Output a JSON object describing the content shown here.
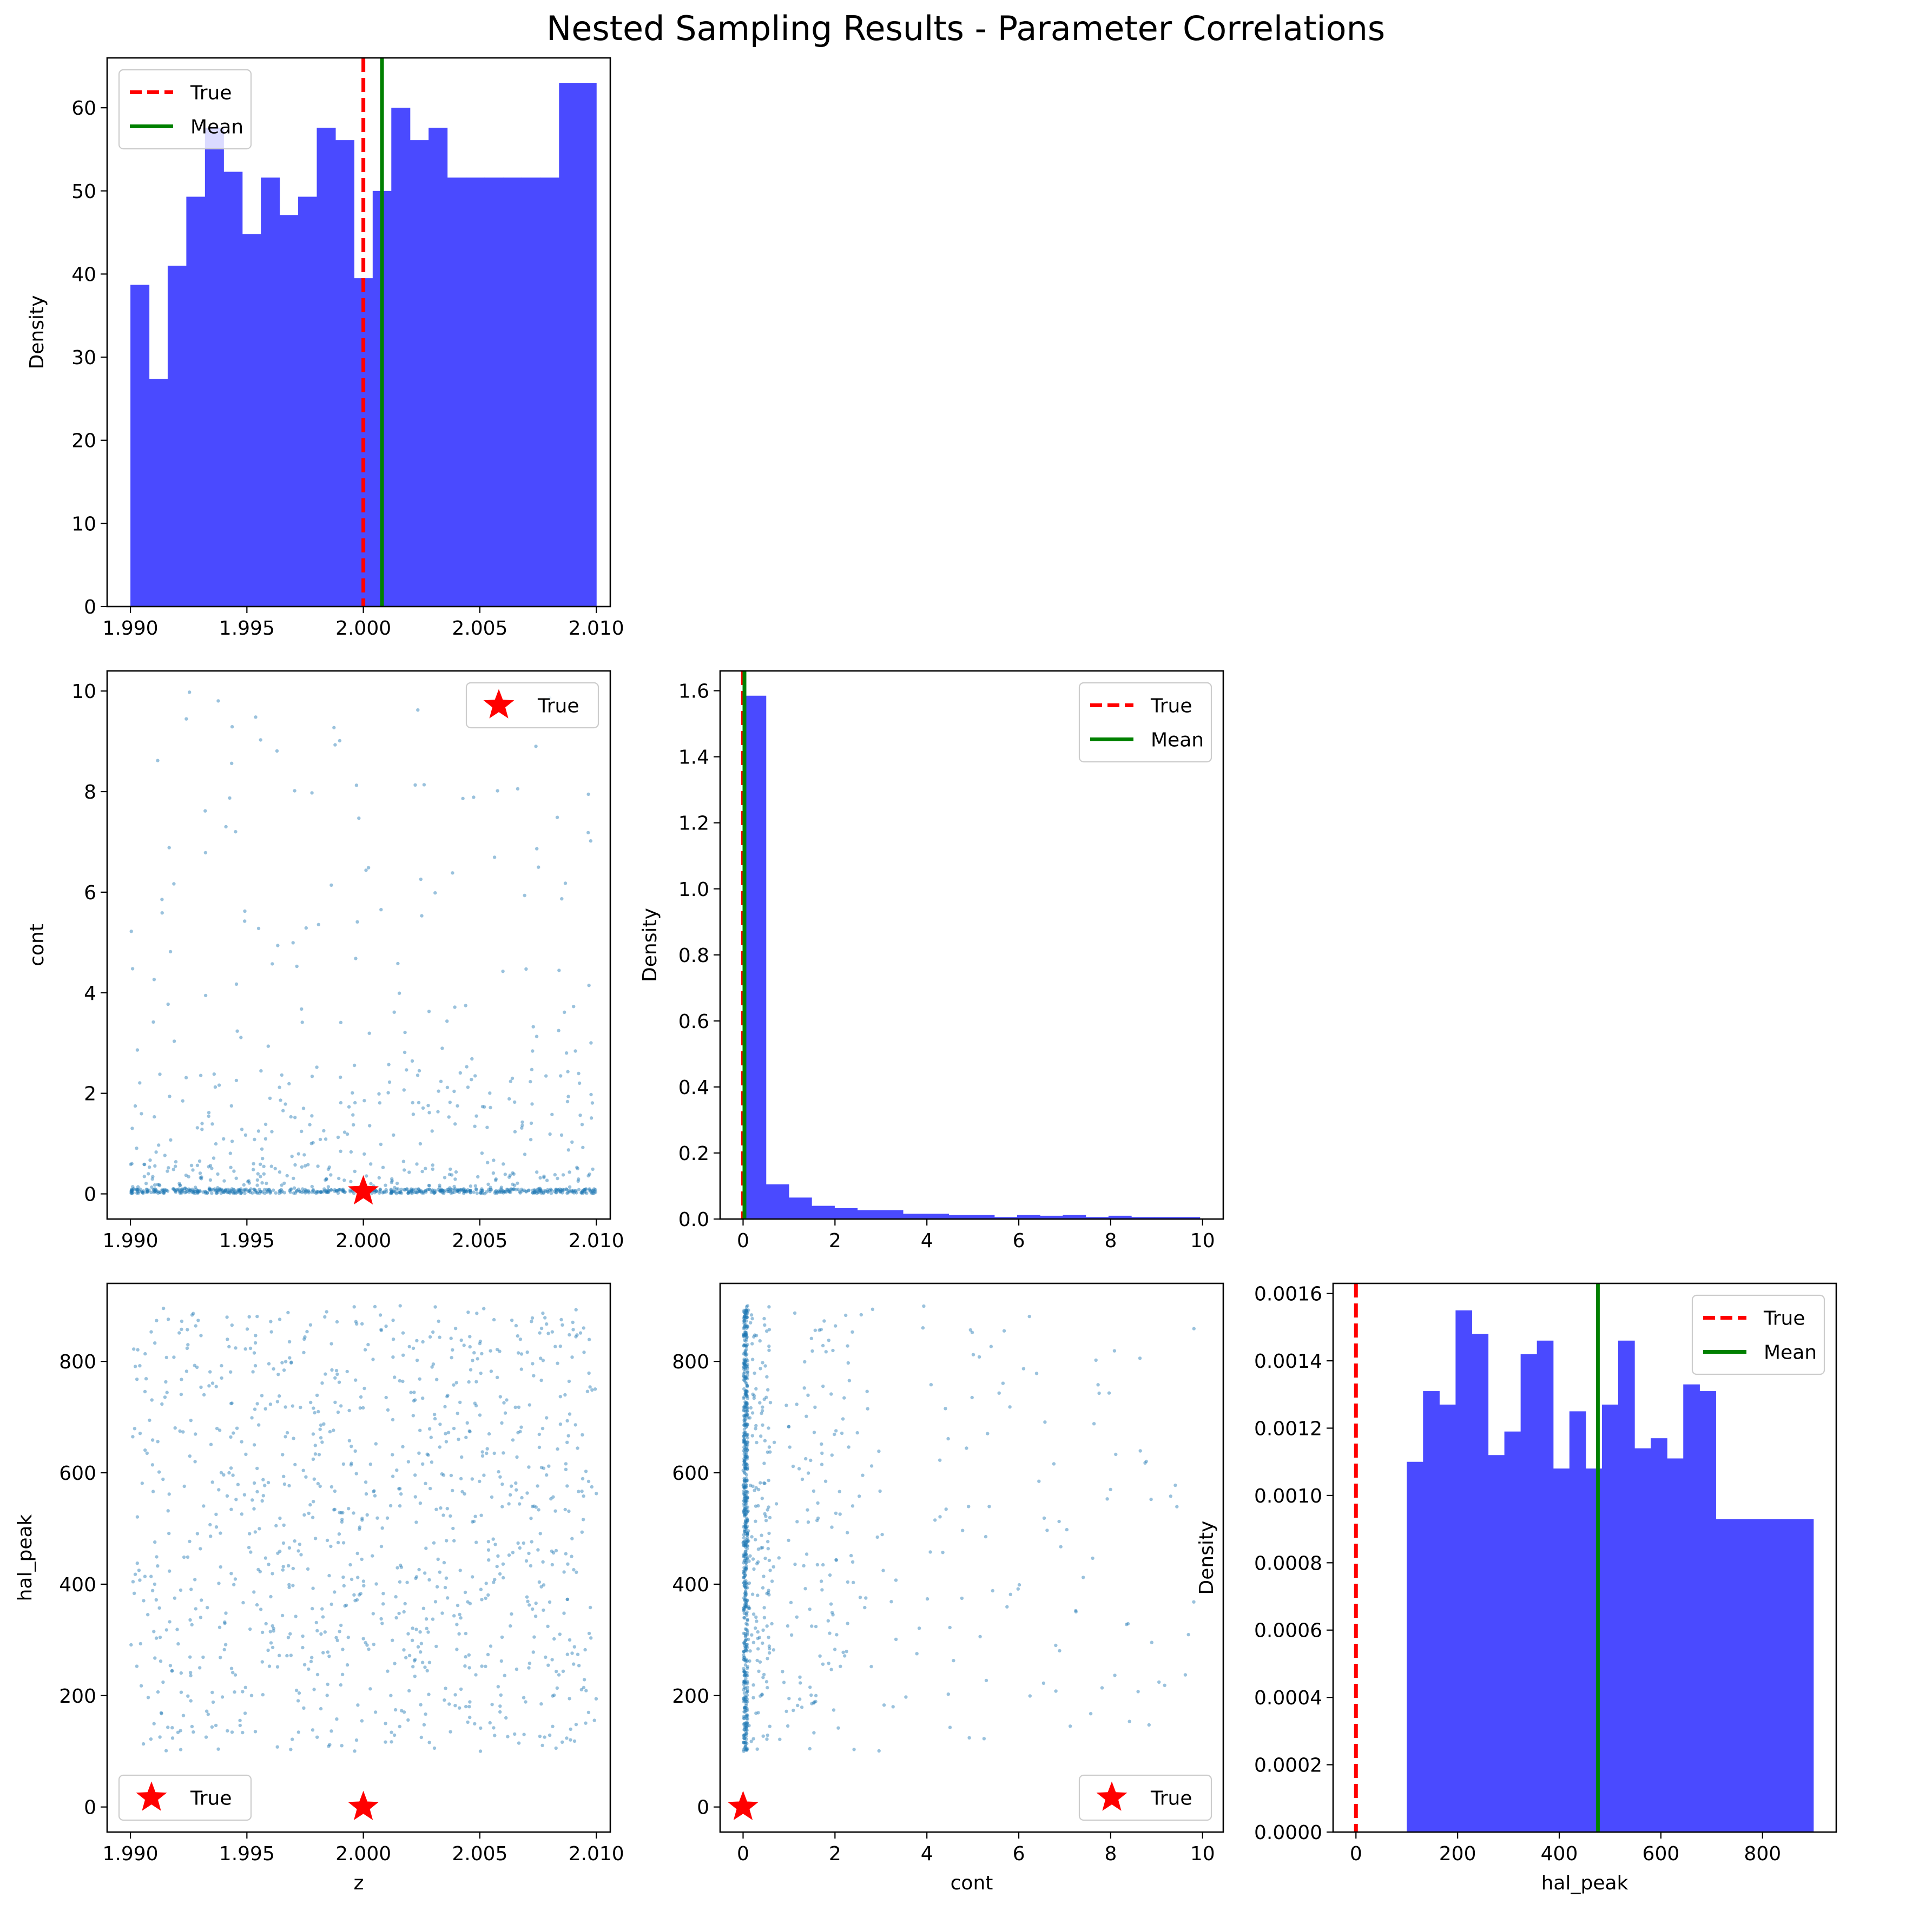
{
  "figure": {
    "title": "Nested Sampling Results - Parameter Correlations",
    "colors": {
      "hist_fill": "#4a4aff",
      "true_line": "#ff0000",
      "mean_line": "#008000",
      "scatter": "#1f77b4",
      "star": "#ff0000"
    }
  },
  "chart_data": [
    {
      "id": "hist_z",
      "type": "bar",
      "subtype": "histogram",
      "xlabel": "",
      "ylabel": "Density",
      "xlim": [
        1.989,
        2.0106
      ],
      "ylim": [
        0,
        66
      ],
      "xticks": [
        1.99,
        1.995,
        2.0,
        2.005,
        2.01
      ],
      "xtick_labels": [
        "1.990",
        "1.995",
        "2.000",
        "2.005",
        "2.010"
      ],
      "yticks": [
        0,
        10,
        20,
        30,
        40,
        50,
        60
      ],
      "ytick_labels": [
        "0",
        "10",
        "20",
        "30",
        "40",
        "50",
        "60"
      ],
      "bin_edges": [
        1.99,
        1.9908,
        1.9916,
        1.9924,
        1.9932,
        1.994,
        1.9948,
        1.9956,
        1.9964,
        1.9972,
        1.998,
        1.9988,
        1.9996,
        2.0004,
        2.0012,
        2.002,
        2.0028,
        2.0036,
        2.0044,
        2.0052,
        2.006,
        2.0068,
        2.0076,
        2.0084,
        2.0092,
        2.01
      ],
      "values": [
        38.7,
        27.4,
        41.0,
        49.3,
        57.6,
        52.3,
        44.8,
        51.6,
        47.1,
        49.3,
        57.6,
        56.1,
        39.5,
        50.0,
        60.0,
        56.1,
        57.6,
        51.6,
        51.6,
        51.6,
        51.6,
        51.6,
        51.6,
        63.0,
        63.0
      ],
      "true_value": 2.0,
      "mean_value": 2.0008,
      "legend": {
        "placement": "upper-left",
        "entries": [
          {
            "label": "True",
            "style": "dashed-red"
          },
          {
            "label": "Mean",
            "style": "solid-green"
          }
        ]
      }
    },
    {
      "id": "scatter_z_cont",
      "type": "scatter",
      "xlabel": "",
      "ylabel": "cont",
      "xlim": [
        1.989,
        2.0106
      ],
      "ylim": [
        -0.5,
        10.4
      ],
      "xticks": [
        1.99,
        1.995,
        2.0,
        2.005,
        2.01
      ],
      "xtick_labels": [
        "1.990",
        "1.995",
        "2.000",
        "2.005",
        "2.010"
      ],
      "yticks": [
        0,
        2,
        4,
        6,
        8,
        10
      ],
      "ytick_labels": [
        "0",
        "2",
        "4",
        "6",
        "8",
        "10"
      ],
      "n_points": 1000,
      "x_range": [
        1.99,
        2.01
      ],
      "y_distribution": "most points near 0 (dense band), sparse tail up to 10",
      "true_point": [
        2.0,
        0.05
      ],
      "legend": {
        "placement": "upper-right",
        "entries": [
          {
            "label": "True",
            "style": "red-star"
          }
        ]
      }
    },
    {
      "id": "hist_cont",
      "type": "bar",
      "subtype": "histogram",
      "xlabel": "",
      "ylabel": "Density",
      "xlim": [
        -0.5,
        10.45
      ],
      "ylim": [
        0,
        1.66
      ],
      "xticks": [
        0,
        2,
        4,
        6,
        8,
        10
      ],
      "xtick_labels": [
        "0",
        "2",
        "4",
        "6",
        "8",
        "10"
      ],
      "yticks": [
        0,
        0.2,
        0.4,
        0.6,
        0.8,
        1.0,
        1.2,
        1.4,
        1.6
      ],
      "ytick_labels": [
        "0.0",
        "0.2",
        "0.4",
        "0.6",
        "0.8",
        "1.0",
        "1.2",
        "1.4",
        "1.6"
      ],
      "bin_edges": [
        0.0,
        0.497,
        0.994,
        1.491,
        1.988,
        2.485,
        2.982,
        3.479,
        3.976,
        4.473,
        4.97,
        5.467,
        5.964,
        6.461,
        6.958,
        7.455,
        7.952,
        8.449,
        8.946,
        9.443,
        9.94
      ],
      "values": [
        1.585,
        0.105,
        0.065,
        0.04,
        0.033,
        0.027,
        0.027,
        0.016,
        0.016,
        0.012,
        0.012,
        0.006,
        0.012,
        0.01,
        0.012,
        0.006,
        0.01,
        0.006,
        0.006,
        0.006
      ],
      "true_value": 0.0,
      "mean_value": 0.03,
      "legend": {
        "placement": "upper-right",
        "entries": [
          {
            "label": "True",
            "style": "dashed-red"
          },
          {
            "label": "Mean",
            "style": "solid-green"
          }
        ]
      }
    },
    {
      "id": "scatter_z_halpeak",
      "type": "scatter",
      "xlabel": "z",
      "ylabel": "hal_peak",
      "xlim": [
        1.989,
        2.0106
      ],
      "ylim": [
        -45,
        940
      ],
      "xticks": [
        1.99,
        1.995,
        2.0,
        2.005,
        2.01
      ],
      "xtick_labels": [
        "1.990",
        "1.995",
        "2.000",
        "2.005",
        "2.010"
      ],
      "yticks": [
        0,
        200,
        400,
        600,
        800
      ],
      "ytick_labels": [
        "0",
        "200",
        "400",
        "600",
        "800"
      ],
      "n_points": 1000,
      "x_range": [
        1.99,
        2.01
      ],
      "y_range": [
        100,
        900
      ],
      "true_point": [
        2.0,
        0
      ],
      "legend": {
        "placement": "lower-left",
        "entries": [
          {
            "label": "True",
            "style": "red-star"
          }
        ]
      }
    },
    {
      "id": "scatter_cont_halpeak",
      "type": "scatter",
      "xlabel": "cont",
      "ylabel": "",
      "xlim": [
        -0.5,
        10.45
      ],
      "ylim": [
        -45,
        940
      ],
      "xticks": [
        0,
        2,
        4,
        6,
        8,
        10
      ],
      "xtick_labels": [
        "0",
        "2",
        "4",
        "6",
        "8",
        "10"
      ],
      "yticks": [
        0,
        200,
        400,
        600,
        800
      ],
      "ytick_labels": [
        "0",
        "200",
        "400",
        "600",
        "800"
      ],
      "n_points": 1000,
      "x_distribution": "most points near 0 (dense column), sparse tail up to 10",
      "y_range": [
        100,
        900
      ],
      "true_point": [
        0.0,
        0
      ],
      "legend": {
        "placement": "lower-right",
        "entries": [
          {
            "label": "True",
            "style": "red-star"
          }
        ]
      }
    },
    {
      "id": "hist_halpeak",
      "type": "bar",
      "subtype": "histogram",
      "xlabel": "hal_peak",
      "ylabel": "Density",
      "xlim": [
        -45,
        945
      ],
      "ylim": [
        0,
        0.00163
      ],
      "xticks": [
        0,
        200,
        400,
        600,
        800
      ],
      "xtick_labels": [
        "0",
        "200",
        "400",
        "600",
        "800"
      ],
      "yticks": [
        0,
        0.0002,
        0.0004,
        0.0006,
        0.0008,
        0.001,
        0.0012,
        0.0014,
        0.0016
      ],
      "ytick_labels": [
        "0.0000",
        "0.0002",
        "0.0004",
        "0.0006",
        "0.0008",
        "0.0010",
        "0.0012",
        "0.0014",
        "0.0016"
      ],
      "bin_edges": [
        100,
        132,
        164,
        196,
        228,
        260,
        292,
        324,
        356,
        388,
        420,
        452,
        484,
        516,
        548,
        580,
        612,
        644,
        676,
        708,
        740,
        772,
        804,
        836,
        868,
        900
      ],
      "values": [
        0.0011,
        0.00131,
        0.00127,
        0.00155,
        0.00148,
        0.00112,
        0.00119,
        0.00142,
        0.00146,
        0.00108,
        0.00125,
        0.00108,
        0.00127,
        0.00146,
        0.00114,
        0.00117,
        0.00111,
        0.00133,
        0.00131,
        0.00093,
        0.00093,
        0.00093,
        0.00093,
        0.00093,
        0.00093
      ],
      "true_value": 0,
      "mean_value": 476,
      "legend": {
        "placement": "upper-right",
        "entries": [
          {
            "label": "True",
            "style": "dashed-red"
          },
          {
            "label": "Mean",
            "style": "solid-green"
          }
        ]
      }
    }
  ]
}
